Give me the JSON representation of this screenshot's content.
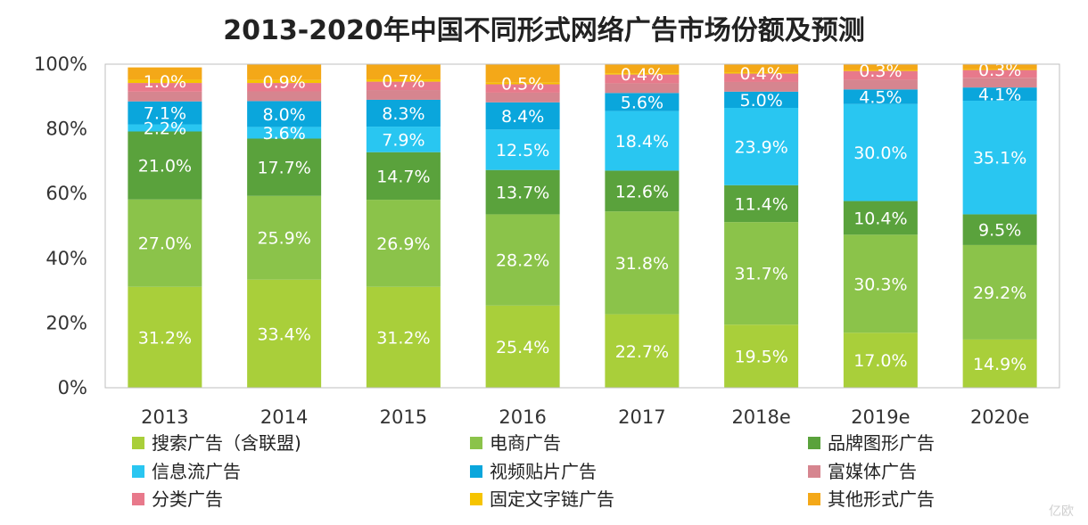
{
  "chart_data": {
    "type": "bar",
    "stacked": true,
    "title": "2013-2020年中国不同形式网络广告市场份额及预测",
    "categories": [
      "2013",
      "2014",
      "2015",
      "2016",
      "2017",
      "2018e",
      "2019e",
      "2020e"
    ],
    "ylim": [
      0,
      100
    ],
    "y_ticks": [
      "0%",
      "20%",
      "40%",
      "60%",
      "80%",
      "100%"
    ],
    "grid": false,
    "legend_placement": "bottom",
    "series": [
      {
        "name": "搜索广告（含联盟)",
        "color": "#a9cf3a",
        "values": [
          31.2,
          33.4,
          31.2,
          25.4,
          22.7,
          19.5,
          17.0,
          14.9
        ]
      },
      {
        "name": "电商广告",
        "color": "#8bc34a",
        "values": [
          27.0,
          25.9,
          26.9,
          28.2,
          31.8,
          31.7,
          30.3,
          29.2
        ]
      },
      {
        "name": "品牌图形广告",
        "color": "#5aa23c",
        "values": [
          21.0,
          17.7,
          14.7,
          13.7,
          12.6,
          11.4,
          10.4,
          9.5
        ]
      },
      {
        "name": "信息流广告",
        "color": "#29c6f1",
        "values": [
          2.2,
          3.6,
          7.9,
          12.5,
          18.4,
          23.9,
          30.0,
          35.1
        ]
      },
      {
        "name": "视频贴片广告",
        "color": "#0aa6dc",
        "values": [
          7.1,
          8.0,
          8.3,
          8.4,
          5.6,
          5.0,
          4.5,
          4.1
        ]
      },
      {
        "name": "富媒体广告",
        "color": "#d6858f",
        "values": [
          3.0,
          3.0,
          3.0,
          3.0,
          3.0,
          3.0,
          3.0,
          3.0
        ]
      },
      {
        "name": "分类广告",
        "color": "#e8798b",
        "values": [
          2.7,
          2.6,
          2.6,
          2.6,
          2.7,
          2.6,
          2.7,
          2.4
        ]
      },
      {
        "name": "固定文字链广告",
        "color": "#f6c400",
        "values": [
          1.0,
          0.9,
          0.7,
          0.5,
          0.4,
          0.4,
          0.3,
          0.3
        ]
      },
      {
        "name": "其他形式广告",
        "color": "#f4a818",
        "values": [
          3.8,
          4.9,
          4.7,
          5.7,
          2.8,
          2.5,
          1.8,
          1.5
        ]
      }
    ],
    "data_labels": {
      "搜索广告（含联盟)": [
        "31.2%",
        "33.4%",
        "31.2%",
        "25.4%",
        "22.7%",
        "19.5%",
        "17.0%",
        "14.9%"
      ],
      "电商广告": [
        "27.0%",
        "25.9%",
        "26.9%",
        "28.2%",
        "31.8%",
        "31.7%",
        "30.3%",
        "29.2%"
      ],
      "品牌图形广告": [
        "21.0%",
        "17.7%",
        "14.7%",
        "13.7%",
        "12.6%",
        "11.4%",
        "10.4%",
        "9.5%"
      ],
      "信息流广告": [
        "2.2%",
        "3.6%",
        "7.9%",
        "12.5%",
        "18.4%",
        "23.9%",
        "30.0%",
        "35.1%"
      ],
      "视频贴片广告": [
        "7.1%",
        "8.0%",
        "8.3%",
        "8.4%",
        "5.6%",
        "5.0%",
        "4.5%",
        "4.1%"
      ],
      "固定文字链广告": [
        "1.0%",
        "0.9%",
        "0.7%",
        "0.5%",
        "0.4%",
        "0.4%",
        "0.3%",
        "0.3%"
      ]
    }
  },
  "watermark": "亿欧"
}
